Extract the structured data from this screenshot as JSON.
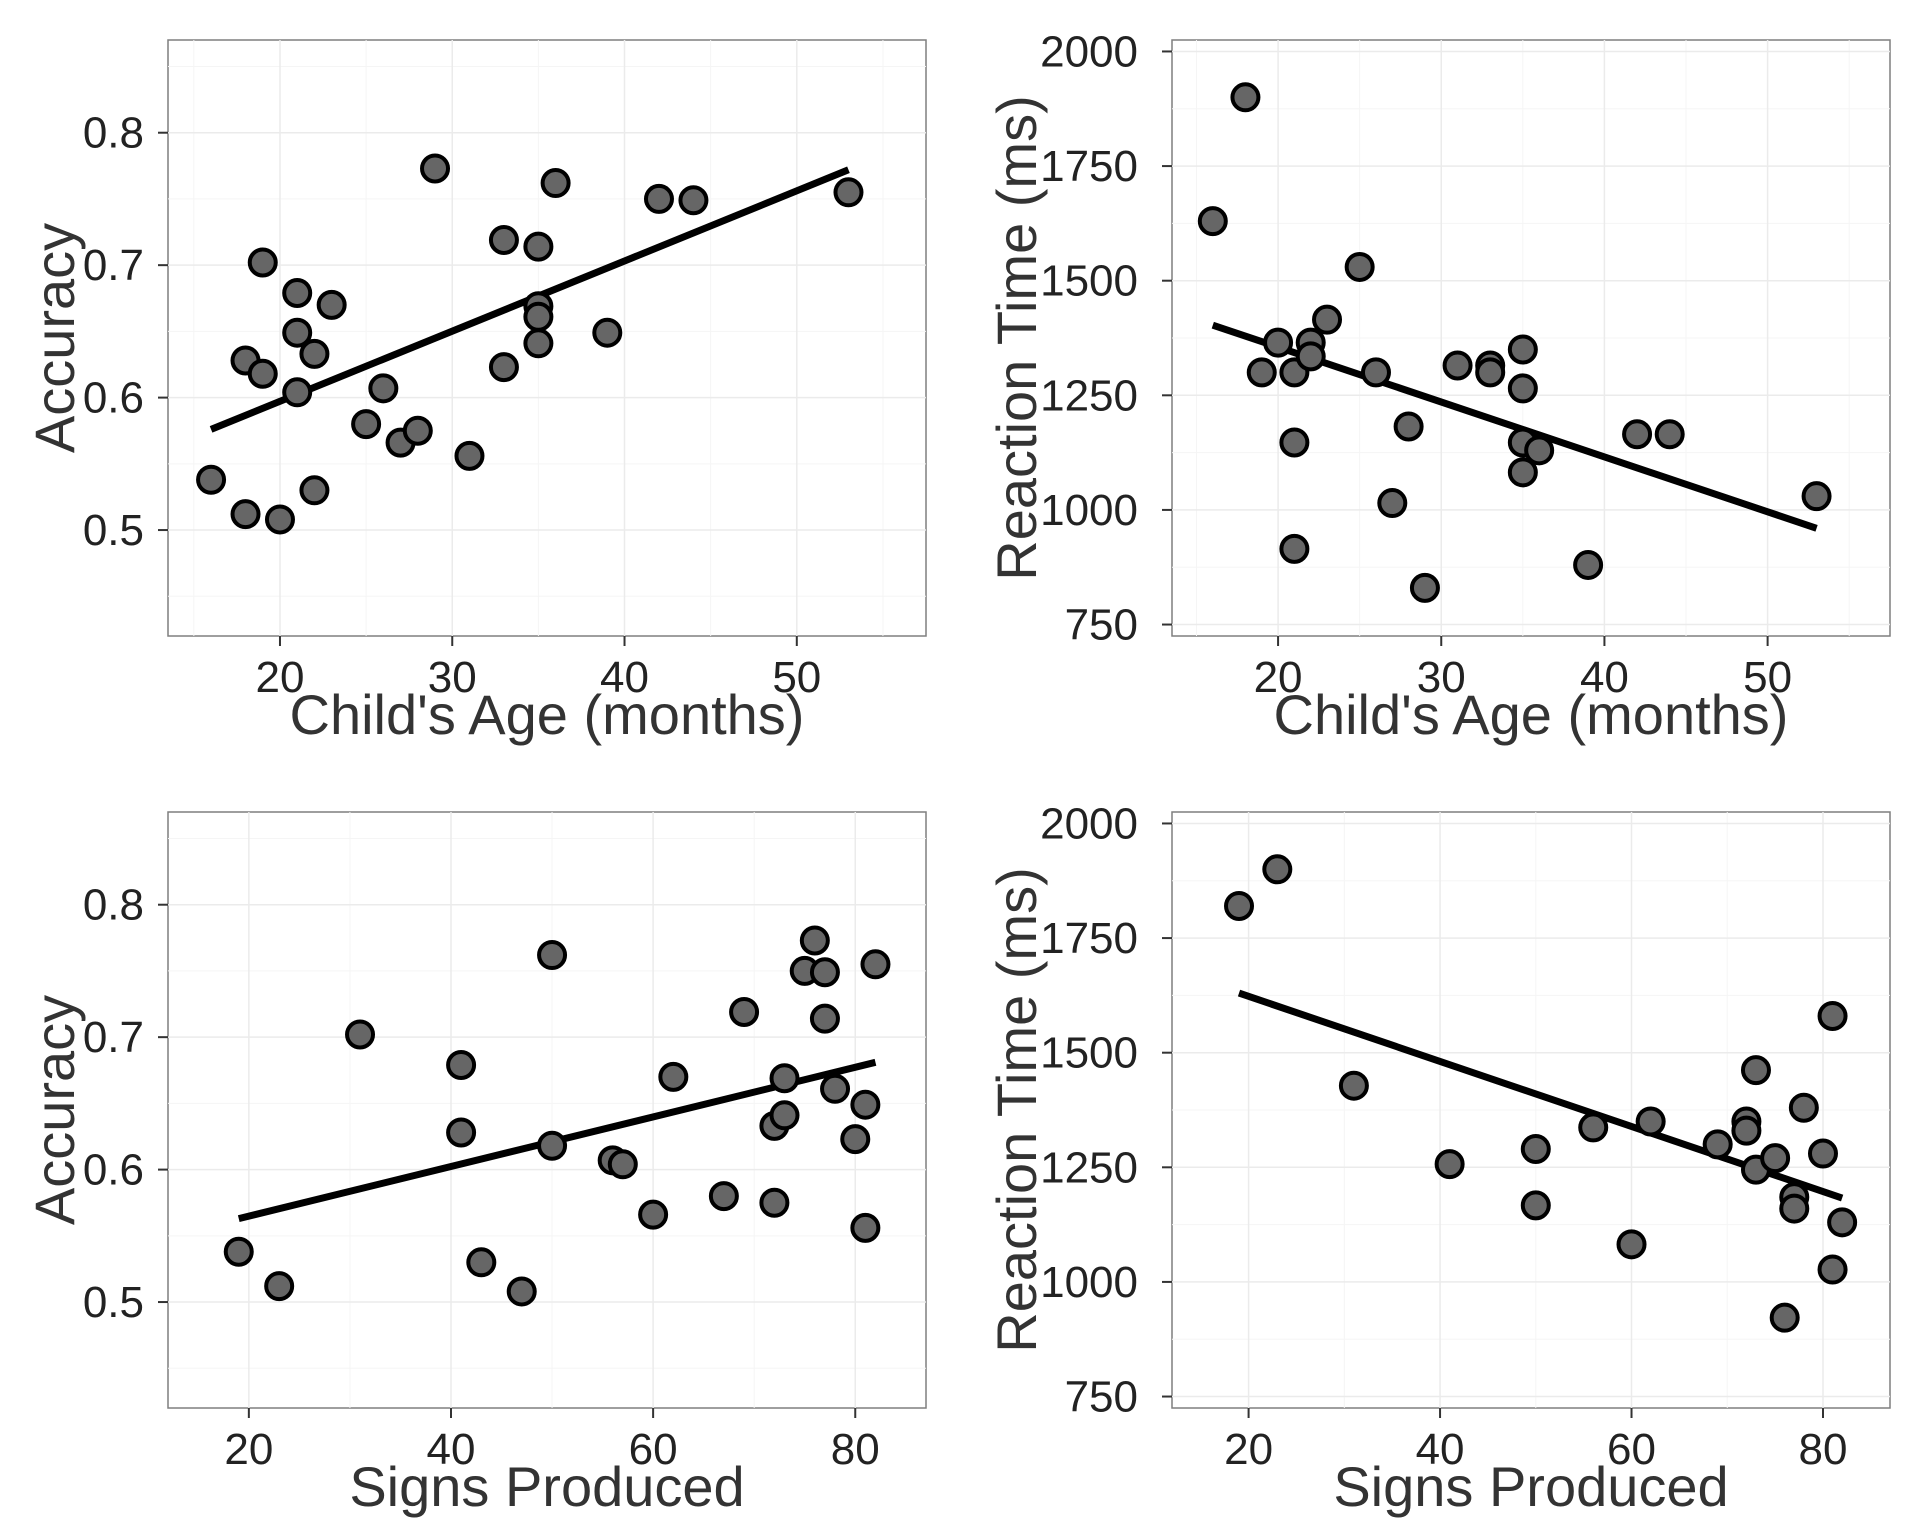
{
  "chart_data": [
    {
      "type": "scatter",
      "xlabel": "Child's Age (months)",
      "ylabel": "Accuracy",
      "xlim": [
        13.5,
        57.5
      ],
      "ylim": [
        0.42,
        0.87
      ],
      "xticks": [
        20,
        30,
        40,
        50
      ],
      "yticks": [
        0.5,
        0.6,
        0.7,
        0.8
      ],
      "xtick_labels": [
        "20",
        "30",
        "40",
        "50"
      ],
      "ytick_labels": [
        "0.5",
        "0.6",
        "0.7",
        "0.8"
      ],
      "grid": true,
      "points": [
        [
          16,
          0.538
        ],
        [
          18,
          0.628
        ],
        [
          18,
          0.512
        ],
        [
          19,
          0.702
        ],
        [
          19,
          0.618
        ],
        [
          20,
          0.508
        ],
        [
          21,
          0.679
        ],
        [
          21,
          0.649
        ],
        [
          21,
          0.604
        ],
        [
          22,
          0.633
        ],
        [
          22,
          0.53
        ],
        [
          23,
          0.67
        ],
        [
          25,
          0.58
        ],
        [
          26,
          0.607
        ],
        [
          27,
          0.566
        ],
        [
          28,
          0.575
        ],
        [
          29,
          0.773
        ],
        [
          31,
          0.556
        ],
        [
          33,
          0.719
        ],
        [
          33,
          0.623
        ],
        [
          35,
          0.714
        ],
        [
          35,
          0.669
        ],
        [
          35,
          0.661
        ],
        [
          35,
          0.641
        ],
        [
          36,
          0.762
        ],
        [
          39,
          0.649
        ],
        [
          42,
          0.75
        ],
        [
          44,
          0.749
        ],
        [
          53,
          0.755
        ]
      ],
      "fit": [
        [
          16,
          0.576
        ],
        [
          53,
          0.772
        ]
      ]
    },
    {
      "type": "scatter",
      "xlabel": "Child's Age (months)",
      "ylabel": "Reaction Time (ms)",
      "xlim": [
        13.5,
        57.5
      ],
      "ylim": [
        725,
        2025
      ],
      "xticks": [
        20,
        30,
        40,
        50
      ],
      "yticks": [
        750,
        1000,
        1250,
        1500,
        1750,
        2000
      ],
      "xtick_labels": [
        "20",
        "30",
        "40",
        "50"
      ],
      "ytick_labels": [
        "750",
        "1000",
        "1250",
        "1500",
        "1750",
        "2000"
      ],
      "grid": true,
      "points": [
        [
          16,
          1630
        ],
        [
          18,
          1900
        ],
        [
          19,
          1300
        ],
        [
          20,
          1365
        ],
        [
          21,
          1300
        ],
        [
          21,
          1147
        ],
        [
          21,
          915
        ],
        [
          22,
          1365
        ],
        [
          22,
          1335
        ],
        [
          23,
          1415
        ],
        [
          25,
          1530
        ],
        [
          26,
          1300
        ],
        [
          27,
          1015
        ],
        [
          28,
          1182
        ],
        [
          29,
          830
        ],
        [
          31,
          1315
        ],
        [
          33,
          1315
        ],
        [
          33,
          1300
        ],
        [
          35,
          1350
        ],
        [
          35,
          1265
        ],
        [
          35,
          1147
        ],
        [
          35,
          1082
        ],
        [
          36,
          1130
        ],
        [
          39,
          880
        ],
        [
          42,
          1165
        ],
        [
          44,
          1165
        ],
        [
          53,
          1030
        ]
      ],
      "fit": [
        [
          16,
          1403
        ],
        [
          53,
          960
        ]
      ]
    },
    {
      "type": "scatter",
      "xlabel": "Signs Produced",
      "ylabel": "Accuracy",
      "xlim": [
        12,
        87
      ],
      "ylim": [
        0.42,
        0.87
      ],
      "xticks": [
        20,
        40,
        60,
        80
      ],
      "yticks": [
        0.5,
        0.6,
        0.7,
        0.8
      ],
      "xtick_labels": [
        "20",
        "40",
        "60",
        "80"
      ],
      "ytick_labels": [
        "0.5",
        "0.6",
        "0.7",
        "0.8"
      ],
      "grid": true,
      "points": [
        [
          19,
          0.538
        ],
        [
          23,
          0.512
        ],
        [
          31,
          0.702
        ],
        [
          41,
          0.679
        ],
        [
          41,
          0.628
        ],
        [
          43,
          0.53
        ],
        [
          47,
          0.508
        ],
        [
          50,
          0.762
        ],
        [
          50,
          0.618
        ],
        [
          56,
          0.607
        ],
        [
          57,
          0.604
        ],
        [
          60,
          0.566
        ],
        [
          62,
          0.67
        ],
        [
          67,
          0.58
        ],
        [
          69,
          0.719
        ],
        [
          72,
          0.575
        ],
        [
          72,
          0.633
        ],
        [
          73,
          0.669
        ],
        [
          73,
          0.641
        ],
        [
          75,
          0.75
        ],
        [
          76,
          0.773
        ],
        [
          77,
          0.749
        ],
        [
          77,
          0.714
        ],
        [
          78,
          0.661
        ],
        [
          80,
          0.623
        ],
        [
          81,
          0.649
        ],
        [
          81,
          0.556
        ],
        [
          82,
          0.755
        ]
      ],
      "fit": [
        [
          19,
          0.563
        ],
        [
          82,
          0.681
        ]
      ]
    },
    {
      "type": "scatter",
      "xlabel": "Signs Produced",
      "ylabel": "Reaction Time (ms)",
      "xlim": [
        12,
        87
      ],
      "ylim": [
        725,
        2025
      ],
      "xticks": [
        20,
        40,
        60,
        80
      ],
      "yticks": [
        750,
        1000,
        1250,
        1500,
        1750,
        2000
      ],
      "xtick_labels": [
        "20",
        "40",
        "60",
        "80"
      ],
      "ytick_labels": [
        "750",
        "1000",
        "1250",
        "1500",
        "1750",
        "2000"
      ],
      "grid": true,
      "points": [
        [
          19,
          1820
        ],
        [
          23,
          1900
        ],
        [
          31,
          1428
        ],
        [
          41,
          1257
        ],
        [
          50,
          1290
        ],
        [
          50,
          1167
        ],
        [
          56,
          1337
        ],
        [
          60,
          1082
        ],
        [
          62,
          1350
        ],
        [
          69,
          1300
        ],
        [
          72,
          1350
        ],
        [
          72,
          1330
        ],
        [
          73,
          1462
        ],
        [
          73,
          1245
        ],
        [
          75,
          1270
        ],
        [
          76,
          922
        ],
        [
          77,
          1185
        ],
        [
          77,
          1160
        ],
        [
          78,
          1380
        ],
        [
          80,
          1280
        ],
        [
          81,
          1580
        ],
        [
          81,
          1027
        ],
        [
          82,
          1130
        ]
      ],
      "fit": [
        [
          19,
          1630
        ],
        [
          82,
          1183
        ]
      ]
    }
  ]
}
